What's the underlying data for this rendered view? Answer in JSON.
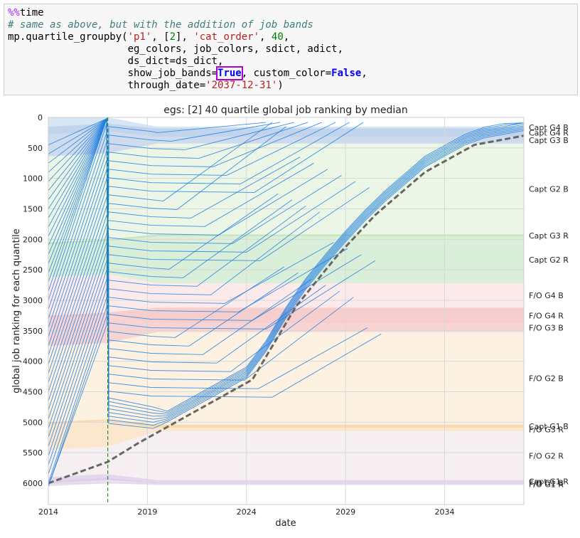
{
  "code": {
    "line1_magic": "%%",
    "line1_cmd": "time",
    "line2_comment": "# same as above, but with the addition of job bands",
    "line3_pre": "mp.quartile_groupby(",
    "line3_s1": "'p1'",
    "line3_mid1": ", [",
    "line3_n1": "2",
    "line3_mid2": "], ",
    "line3_s2": "'cat_order'",
    "line3_mid3": ", ",
    "line3_n2": "40",
    "line3_end": ",",
    "line4": "                    eg_colors, job_colors, sdict, adict,",
    "line5": "                    ds_dict=ds_dict,",
    "line6_pre": "                    show_job_bands=",
    "line6_true": "True",
    "line6_mid": ", custom_color=",
    "line6_false": "False",
    "line6_end": ",",
    "line7_pre": "                    through_date=",
    "line7_str": "'2037-12-31'",
    "line7_end": ")"
  },
  "chart_data": {
    "type": "line",
    "title": "egs: [2]    40 quartile global job ranking by median",
    "xlabel": "date",
    "ylabel": "global job ranking for each quantile",
    "xlim": [
      2014,
      2038
    ],
    "ylim": [
      6350,
      0
    ],
    "y_inverted": true,
    "xticks": [
      2014,
      2019,
      2024,
      2029,
      2034
    ],
    "xtick_labels": [
      "2014",
      "2019",
      "2024",
      "2029",
      "2034"
    ],
    "yticks": [
      0,
      500,
      1000,
      1500,
      2000,
      2500,
      3000,
      3500,
      4000,
      4500,
      5000,
      5500,
      6000
    ],
    "ytick_labels": [
      "0",
      "500",
      "1000",
      "1500",
      "2000",
      "2500",
      "3000",
      "3500",
      "4000",
      "4500",
      "5000",
      "5500",
      "6000"
    ],
    "grid": true,
    "vline_date": 2017.0,
    "bands": [
      {
        "label": "Capt G4 B",
        "start": [
          0,
          150
        ],
        "end": [
          150,
          180
        ],
        "color": "#cfe2f3"
      },
      {
        "label": "Capt G4 R",
        "start": [
          150,
          280
        ],
        "end": [
          180,
          320
        ],
        "color": "#b6cce8"
      },
      {
        "label": "Capt G3 B",
        "start": [
          280,
          640
        ],
        "end": [
          320,
          430
        ],
        "color": "#c6d3ea"
      },
      {
        "label": "Capt G2 B",
        "start": [
          640,
          2050
        ],
        "end": [
          430,
          1920
        ],
        "color": "#e8f5e2"
      },
      {
        "label": "Capt G3 R",
        "start": [
          2050,
          2080
        ],
        "end": [
          1920,
          1950
        ],
        "color": "#bfe2b0"
      },
      {
        "label": "Capt G2 R",
        "start": [
          2080,
          2620
        ],
        "end": [
          1950,
          2720
        ],
        "color": "#d4ecd2"
      },
      {
        "label": "F/O G4 B",
        "start": [
          2620,
          3250
        ],
        "end": [
          2720,
          3120
        ],
        "color": "#fbe6e6"
      },
      {
        "label": "F/O G4 R",
        "start": [
          3250,
          3300
        ],
        "end": [
          3120,
          3380
        ],
        "color": "#f6c6c6"
      },
      {
        "label": "F/O G3 B",
        "start": [
          3300,
          3750
        ],
        "end": [
          3380,
          3520
        ],
        "color": "#f6cccc"
      },
      {
        "label": "F/O G2 B",
        "start": [
          3750,
          5000
        ],
        "end": [
          3520,
          5040
        ],
        "color": "#fdeedc"
      },
      {
        "label": "Capt G1 B",
        "start": [
          5000,
          5030
        ],
        "end": [
          5040,
          5090
        ],
        "color": "#f8d3a0"
      },
      {
        "label": "F/O G3 R",
        "start": [
          5030,
          5450
        ],
        "end": [
          5090,
          5150
        ],
        "color": "#f9e3c4"
      },
      {
        "label": "F/O G2 R",
        "start": [
          5450,
          5900
        ],
        "end": [
          5150,
          5950
        ],
        "color": "#f5ecef"
      },
      {
        "label": "Capt G1 R",
        "start": [
          5900,
          5960
        ],
        "end": [
          5950,
          5990
        ],
        "color": "#ddd0ea"
      },
      {
        "label": "F/O G1 B",
        "start": [
          5960,
          6000
        ],
        "end": [
          5990,
          6000
        ],
        "color": "#d7c5e6"
      },
      {
        "label": "F/O G1 R",
        "start": [
          6000,
          6050
        ],
        "end": [
          6000,
          6030
        ],
        "color": "#e6d8f0"
      }
    ],
    "series": [
      {
        "x": [
          2014.0,
          2017.0,
          2018.5,
          2024.3,
          2026.5,
          2028.5,
          2030.5,
          2033.0,
          2035.5,
          2038.0
        ],
        "values": [
          6000,
          5650,
          5350,
          4300,
          3100,
          2300,
          1600,
          900,
          450,
          300
        ],
        "style": "median-dashed"
      }
    ]
  }
}
